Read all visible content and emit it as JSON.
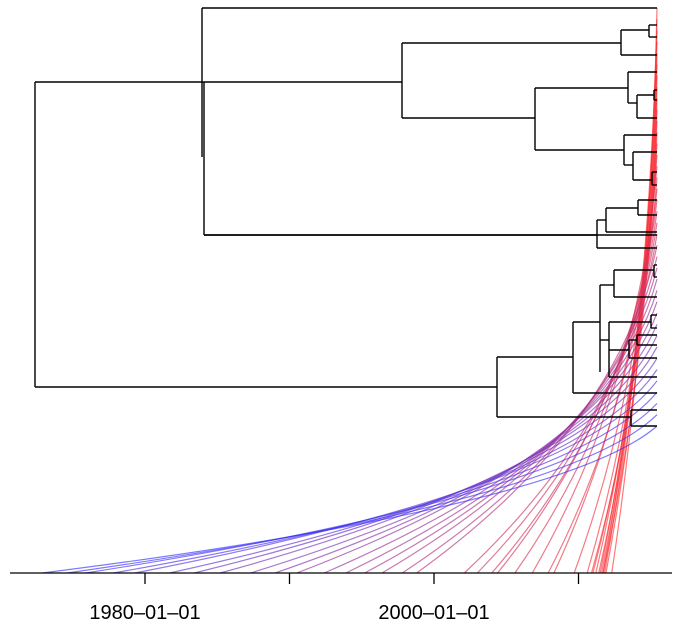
{
  "chart_data": {
    "type": "tree",
    "description_type": "time-scaled phylogenetic tree with tip-to-date mapping lines",
    "colors": {
      "tree": "#000000",
      "line_start": "#3333ff",
      "line_end": "#ff3333"
    },
    "x_axis": {
      "tick_labels": [
        "1980–01–01",
        "2000–01–01"
      ],
      "labeled_tick_years": [
        1980,
        2000
      ],
      "tick_years": [
        1980,
        1990,
        2000,
        2010
      ]
    },
    "tip_dates": [
      2012.3,
      2011.7,
      2011.8,
      2011.5,
      2011.6,
      2011.9,
      2011.2,
      2011.4,
      2011.7,
      2011.0,
      2010.6,
      2010.9,
      2009.7,
      2008.3,
      2006.8,
      2007.9,
      2005.6,
      2004.4,
      2004.0,
      2003.0,
      2002.1,
      1998.8,
      1997.8,
      1996.4,
      1995.2,
      1993.9,
      1992.4,
      1990.5,
      1989.0,
      1987.3,
      1985.2,
      1983.4,
      1981.7,
      1979.3,
      1977.8,
      1975.9,
      1974.6,
      1972.9
    ]
  }
}
